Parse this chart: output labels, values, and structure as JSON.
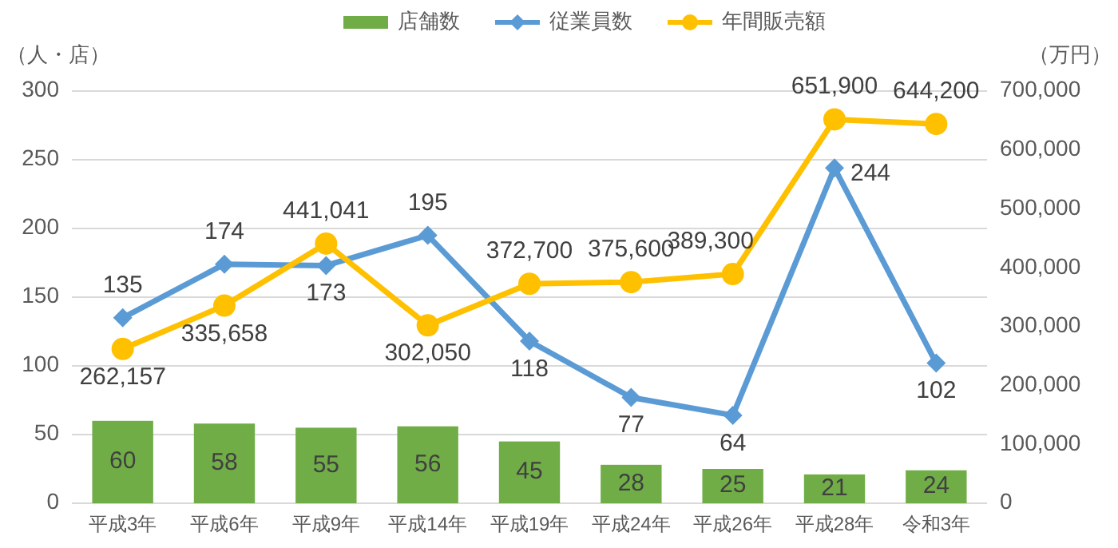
{
  "chart_data": {
    "type": "bar",
    "ylabel": "（人・店）",
    "y2label": "（万円）",
    "categories": [
      "平成3年",
      "平成6年",
      "平成9年",
      "平成14年",
      "平成19年",
      "平成24年",
      "平成26年",
      "平成28年",
      "令和3年"
    ],
    "series": [
      {
        "name": "店舗数",
        "color": "#70ad47",
        "values": [
          60,
          58,
          55,
          56,
          45,
          28,
          25,
          21,
          24
        ]
      },
      {
        "name": "従業員数",
        "type": "line",
        "color": "#5b9bd5",
        "marker": "diamond",
        "values": [
          135,
          174,
          173,
          195,
          118,
          77,
          64,
          244,
          102
        ]
      },
      {
        "name": "年間販売額",
        "type": "line",
        "axis": "y2",
        "color": "#ffc000",
        "marker": "circle",
        "values": [
          262157,
          335658,
          441041,
          302050,
          372700,
          375600,
          389300,
          651900,
          644200
        ],
        "value_labels": [
          "262,157",
          "335,658",
          "441,041",
          "302,050",
          "372,700",
          "375,600",
          "389,300",
          "651,900",
          "644,200"
        ]
      }
    ],
    "ylim": [
      0,
      300
    ],
    "yticks": [
      0,
      50,
      100,
      150,
      200,
      250,
      300
    ],
    "y2lim": [
      0,
      700000
    ],
    "y2ticks": [
      0,
      {
        "value": 100000,
        "label": "100,000"
      },
      {
        "value": 200000,
        "label": "200,000"
      },
      {
        "value": 300000,
        "label": "300,000"
      },
      {
        "value": 400000,
        "label": "400,000"
      },
      {
        "value": 500000,
        "label": "500,000"
      },
      {
        "value": 600000,
        "label": "600,000"
      },
      {
        "value": 700000,
        "label": "700,000"
      }
    ],
    "grid": "y",
    "legend": "top",
    "data_labels": true
  }
}
